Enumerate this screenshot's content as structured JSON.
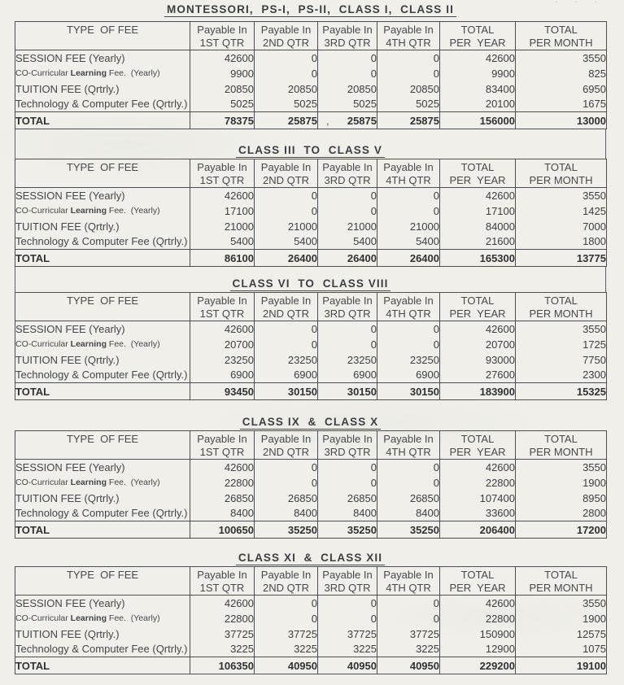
{
  "page": {
    "corner_fragment": "· · ·"
  },
  "table_header": {
    "columns": [
      {
        "line1": "TYPE  OF FEE",
        "line2": ""
      },
      {
        "line1": "Payable In",
        "line2": "1ST QTR"
      },
      {
        "line1": "Payable In",
        "line2": "2ND QTR"
      },
      {
        "line1": "Payable In",
        "line2": "3RD QTR"
      },
      {
        "line1": "Payable In",
        "line2": "4TH QTR"
      },
      {
        "line1": "TOTAL",
        "line2": "PER  YEAR"
      },
      {
        "line1": "TOTAL",
        "line2": "PER MONTH"
      }
    ]
  },
  "row_labels": [
    {
      "pre": "SESSION FEE (Yearly)",
      "bold": "",
      "post": "",
      "small": false
    },
    {
      "pre": "CO-Curricular ",
      "bold": "Learning",
      "post": " Fee.  (Yearly)",
      "small": true
    },
    {
      "pre": "TUITION FEE (Qrtrly.)",
      "bold": "",
      "post": "",
      "small": false
    },
    {
      "pre": "Technology & Computer Fee (Qrtrly.)",
      "bold": "",
      "post": "",
      "small": false
    }
  ],
  "total_label": "TOTAL",
  "tables": [
    {
      "title": "MONTESSORI,  PS-I,  PS-II,  CLASS I,  CLASS II",
      "rows": [
        [
          "42600",
          "0",
          "0",
          "0",
          "42600",
          "3550"
        ],
        [
          "9900",
          "0",
          "0",
          "0",
          "9900",
          "825"
        ],
        [
          "20850",
          "20850",
          "20850",
          "20850",
          "83400",
          "6950"
        ],
        [
          "5025",
          "5025",
          "5025",
          "5025",
          "20100",
          "1675"
        ]
      ],
      "total": [
        "78375",
        "25875",
        "25875",
        "25875",
        "156000",
        "13000"
      ],
      "stray_mark": ","
    },
    {
      "title": "CLASS III  TO  CLASS V",
      "rows": [
        [
          "42600",
          "0",
          "0",
          "0",
          "42600",
          "3550"
        ],
        [
          "17100",
          "0",
          "0",
          "0",
          "17100",
          "1425"
        ],
        [
          "21000",
          "21000",
          "21000",
          "21000",
          "84000",
          "7000"
        ],
        [
          "5400",
          "5400",
          "5400",
          "5400",
          "21600",
          "1800"
        ]
      ],
      "total": [
        "86100",
        "26400",
        "26400",
        "26400",
        "165300",
        "13775"
      ]
    },
    {
      "title": "CLASS VI  TO  CLASS VIII",
      "rows": [
        [
          "42600",
          "0",
          "0",
          "0",
          "42600",
          "3550"
        ],
        [
          "20700",
          "0",
          "0",
          "0",
          "20700",
          "1725"
        ],
        [
          "23250",
          "23250",
          "23250",
          "23250",
          "93000",
          "7750"
        ],
        [
          "6900",
          "6900",
          "6900",
          "6900",
          "27600",
          "2300"
        ]
      ],
      "total": [
        "93450",
        "30150",
        "30150",
        "30150",
        "183900",
        "15325"
      ]
    },
    {
      "title": "CLASS IX  &  CLASS X",
      "rows": [
        [
          "42600",
          "0",
          "0",
          "0",
          "42600",
          "3550"
        ],
        [
          "22800",
          "0",
          "0",
          "0",
          "22800",
          "1900"
        ],
        [
          "26850",
          "26850",
          "26850",
          "26850",
          "107400",
          "8950"
        ],
        [
          "8400",
          "8400",
          "8400",
          "8400",
          "33600",
          "2800"
        ]
      ],
      "total": [
        "100650",
        "35250",
        "35250",
        "35250",
        "206400",
        "17200"
      ]
    },
    {
      "title": "CLASS XI  &  CLASS XII",
      "rows": [
        [
          "42600",
          "0",
          "0",
          "0",
          "42600",
          "3550"
        ],
        [
          "22800",
          "0",
          "0",
          "0",
          "22800",
          "1900"
        ],
        [
          "37725",
          "37725",
          "37725",
          "37725",
          "150900",
          "12575"
        ],
        [
          "3225",
          "3225",
          "3225",
          "3225",
          "12900",
          "1075"
        ]
      ],
      "total": [
        "106350",
        "40950",
        "40950",
        "40950",
        "229200",
        "19100"
      ]
    }
  ]
}
